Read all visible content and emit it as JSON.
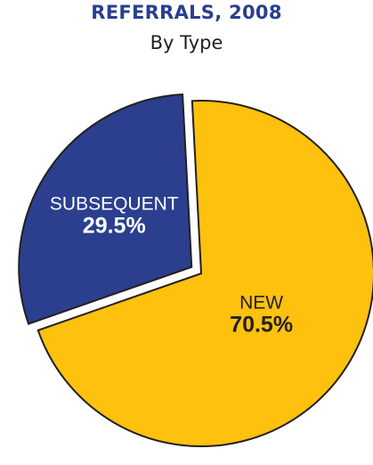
{
  "chart_data": {
    "type": "pie",
    "title": "REFERRALS, 2008",
    "subtitle": "By Type",
    "slices": [
      {
        "label": "NEW",
        "value_label": "70.5%",
        "value": 70.5,
        "color": "#fdc10e",
        "exploded": false
      },
      {
        "label": "SUBSEQUENT",
        "value_label": "29.5%",
        "value": 29.5,
        "color": "#2b3f8e",
        "exploded": true
      }
    ],
    "stroke_color": "#231f20",
    "title_color": "#2a3f8f",
    "label_color": "#231f20",
    "inner_label_color": "#ffffff"
  }
}
